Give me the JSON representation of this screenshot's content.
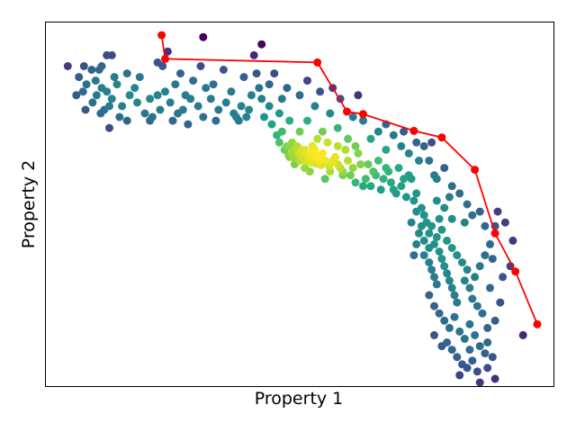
{
  "chart_data": {
    "type": "scatter",
    "title": "",
    "xlabel": "Property 1",
    "ylabel": "Property 2",
    "xlim": [
      0,
      100
    ],
    "ylim": [
      0,
      100
    ],
    "grid": false,
    "legend": "none",
    "ticks_shown": false,
    "colormap": "viridis",
    "colors": {
      "front_line": "#ff0000",
      "front_marker": "#ff0000",
      "frame": "#000000"
    },
    "series": [
      {
        "kind": "points",
        "color_by": "local density",
        "points": [
          [
            4.3,
            88
          ],
          [
            6.0,
            80
          ],
          [
            6.5,
            85
          ],
          [
            7.3,
            81
          ],
          [
            8.0,
            83
          ],
          [
            7.8,
            76
          ],
          [
            9.2,
            78
          ],
          [
            10.0,
            80
          ],
          [
            10.8,
            75
          ],
          [
            12.0,
            81
          ],
          [
            12.5,
            77
          ],
          [
            13.0,
            79
          ],
          [
            11.0,
            82
          ],
          [
            9.8,
            84
          ],
          [
            10.5,
            87
          ],
          [
            12.0,
            91
          ],
          [
            11.5,
            76
          ],
          [
            14.0,
            83
          ],
          [
            15.0,
            77
          ],
          [
            16.5,
            80
          ],
          [
            17.5,
            82
          ],
          [
            14.5,
            74
          ],
          [
            16.0,
            73
          ],
          [
            18.0,
            78
          ],
          [
            19.5,
            75
          ],
          [
            20.5,
            79
          ],
          [
            21.0,
            74
          ],
          [
            22.5,
            76
          ],
          [
            23.5,
            81
          ],
          [
            24.5,
            78
          ],
          [
            25.5,
            83
          ],
          [
            26.0,
            75
          ],
          [
            27.5,
            80
          ],
          [
            28.0,
            72
          ],
          [
            29.0,
            84
          ],
          [
            30.0,
            77
          ],
          [
            31.0,
            74
          ],
          [
            32.5,
            79
          ],
          [
            33.0,
            83
          ],
          [
            34.0,
            76
          ],
          [
            35.5,
            78
          ],
          [
            36.5,
            81
          ],
          [
            37.5,
            74
          ],
          [
            38.5,
            77
          ],
          [
            39.0,
            85
          ],
          [
            40.5,
            80
          ],
          [
            41.5,
            86
          ],
          [
            42.0,
            82
          ],
          [
            35.0,
            87
          ],
          [
            30.5,
            88
          ],
          [
            23.0,
            88
          ],
          [
            20.5,
            73
          ],
          [
            22.0,
            80
          ],
          [
            18.5,
            85
          ],
          [
            25.0,
            73
          ],
          [
            27.0,
            76
          ],
          [
            33.5,
            73
          ],
          [
            37.0,
            75
          ],
          [
            28.5,
            79
          ],
          [
            31.5,
            82
          ],
          [
            16.0,
            86
          ],
          [
            13.5,
            85
          ],
          [
            12.5,
            71
          ],
          [
            38.0,
            73
          ],
          [
            39.5,
            74
          ],
          [
            40.0,
            76
          ],
          [
            43.0,
            74
          ],
          [
            44.5,
            72
          ],
          [
            45.5,
            69
          ],
          [
            46.0,
            67
          ],
          [
            47.0,
            65
          ],
          [
            48.0,
            63
          ],
          [
            49.0,
            61
          ],
          [
            50.0,
            62
          ],
          [
            51.0,
            60
          ],
          [
            52.0,
            59
          ],
          [
            53.0,
            64
          ],
          [
            54.0,
            62
          ],
          [
            55.0,
            57
          ],
          [
            56.0,
            59
          ],
          [
            57.0,
            63
          ],
          [
            58.0,
            60
          ],
          [
            59.0,
            65
          ],
          [
            60.0,
            58
          ],
          [
            61.0,
            56
          ],
          [
            62.0,
            61
          ],
          [
            63.0,
            57
          ],
          [
            64.0,
            55
          ],
          [
            65.0,
            58
          ],
          [
            66.0,
            54
          ],
          [
            67.0,
            60
          ],
          [
            68.0,
            56
          ],
          [
            69.0,
            53
          ],
          [
            70.0,
            55
          ],
          [
            71.0,
            52
          ],
          [
            72.0,
            57
          ],
          [
            73.0,
            53
          ],
          [
            46.5,
            70
          ],
          [
            48.5,
            67
          ],
          [
            50.5,
            65
          ],
          [
            52.5,
            66
          ],
          [
            54.5,
            64
          ],
          [
            56.5,
            62
          ],
          [
            58.5,
            58
          ],
          [
            60.5,
            60
          ],
          [
            62.5,
            55
          ],
          [
            64.5,
            59
          ],
          [
            66.5,
            57
          ],
          [
            68.5,
            54
          ],
          [
            70.5,
            57
          ],
          [
            72.5,
            51
          ],
          [
            42.5,
            79
          ],
          [
            44.0,
            77
          ],
          [
            46.0,
            75
          ],
          [
            48.0,
            73
          ],
          [
            50.0,
            70
          ],
          [
            51.5,
            73
          ],
          [
            53.5,
            68
          ],
          [
            55.5,
            67
          ],
          [
            57.5,
            66
          ],
          [
            59.5,
            62
          ],
          [
            61.5,
            64
          ],
          [
            63.5,
            61
          ],
          [
            65.5,
            62
          ],
          [
            67.5,
            59
          ],
          [
            69.5,
            60
          ],
          [
            71.5,
            58
          ],
          [
            47.5,
            66
          ],
          [
            48.5,
            64
          ],
          [
            49.5,
            66
          ],
          [
            50.0,
            64
          ],
          [
            50.5,
            63
          ],
          [
            51.0,
            65
          ],
          [
            51.5,
            62
          ],
          [
            52.0,
            64
          ],
          [
            52.5,
            62
          ],
          [
            53.0,
            65
          ],
          [
            53.5,
            63
          ],
          [
            54.0,
            61
          ],
          [
            54.5,
            64
          ],
          [
            55.0,
            62
          ],
          [
            49.0,
            65
          ],
          [
            48.0,
            66
          ],
          [
            51.8,
            63.5
          ],
          [
            52.8,
            63.8
          ],
          [
            53.8,
            62.5
          ],
          [
            50.8,
            64.6
          ],
          [
            49.8,
            64.2
          ],
          [
            51.2,
            61.8
          ],
          [
            52.2,
            61.5
          ],
          [
            53.2,
            61.2
          ],
          [
            54.2,
            60.8
          ],
          [
            48.8,
            62.8
          ],
          [
            47.8,
            63.5
          ],
          [
            55.8,
            60.5
          ],
          [
            56.5,
            61.5
          ],
          [
            57.5,
            61.0
          ],
          [
            58.5,
            59.0
          ],
          [
            74.0,
            49
          ],
          [
            74.5,
            47
          ],
          [
            75.0,
            45
          ],
          [
            74.0,
            44
          ],
          [
            75.5,
            42
          ],
          [
            74.5,
            40
          ],
          [
            75.5,
            38
          ],
          [
            74.5,
            36
          ],
          [
            75.5,
            34
          ],
          [
            76.0,
            32
          ],
          [
            76.5,
            30
          ],
          [
            77.0,
            28
          ],
          [
            76.5,
            39
          ],
          [
            77.0,
            41
          ],
          [
            77.5,
            37
          ],
          [
            78.0,
            35
          ],
          [
            78.5,
            33
          ],
          [
            79.0,
            31
          ],
          [
            79.5,
            29
          ],
          [
            80.0,
            27
          ],
          [
            80.5,
            25
          ],
          [
            81.0,
            23
          ],
          [
            76.0,
            44
          ],
          [
            77.5,
            46
          ],
          [
            78.0,
            43
          ],
          [
            79.0,
            40
          ],
          [
            80.0,
            38
          ],
          [
            81.0,
            36
          ],
          [
            82.0,
            34
          ],
          [
            83.0,
            32
          ],
          [
            82.5,
            29
          ],
          [
            83.5,
            27
          ],
          [
            84.0,
            24
          ],
          [
            85.0,
            22
          ],
          [
            86.0,
            20
          ],
          [
            84.5,
            30
          ],
          [
            85.5,
            33
          ],
          [
            86.5,
            36
          ],
          [
            87.5,
            39
          ],
          [
            73.5,
            42
          ],
          [
            73.0,
            39
          ],
          [
            72.5,
            36
          ],
          [
            72.0,
            45
          ],
          [
            73.0,
            48
          ],
          [
            75.5,
            25
          ],
          [
            76.5,
            22
          ],
          [
            77.5,
            20
          ],
          [
            78.5,
            18
          ],
          [
            79.5,
            16
          ],
          [
            80.5,
            19
          ],
          [
            81.5,
            15
          ],
          [
            82.5,
            13
          ],
          [
            83.5,
            17
          ],
          [
            84.5,
            14
          ],
          [
            85.5,
            11
          ],
          [
            86.5,
            9
          ],
          [
            87.0,
            12
          ],
          [
            88.0,
            8
          ],
          [
            79.0,
            12
          ],
          [
            80.0,
            10
          ],
          [
            81.0,
            8
          ],
          [
            82.0,
            6
          ],
          [
            83.0,
            5
          ],
          [
            84.0,
            7
          ],
          [
            85.0,
            4
          ],
          [
            76.5,
            14
          ],
          [
            78.0,
            11
          ],
          [
            81.5,
            3
          ],
          [
            83.5,
            10
          ],
          [
            87.0,
            16
          ],
          [
            88.5,
            18
          ],
          [
            89.5,
            23
          ],
          [
            90.0,
            30
          ],
          [
            91.5,
            33
          ],
          [
            92.0,
            40
          ],
          [
            88.5,
            44
          ],
          [
            87.5,
            27
          ],
          [
            88.0,
            35
          ],
          [
            86.5,
            44
          ],
          [
            84.0,
            47
          ],
          [
            82.5,
            45
          ],
          [
            80.0,
            46
          ],
          [
            78.5,
            49
          ],
          [
            77.0,
            51
          ],
          [
            79.5,
            52
          ],
          [
            83.0,
            50
          ],
          [
            85.5,
            48
          ],
          [
            89.0,
            48
          ],
          [
            90.5,
            45
          ],
          [
            94.0,
            14
          ],
          [
            87.0,
            5
          ],
          [
            85.5,
            1
          ],
          [
            88.5,
            2
          ],
          [
            41.0,
            91
          ],
          [
            42.5,
            94
          ],
          [
            45.0,
            86
          ],
          [
            47.5,
            82
          ],
          [
            50.0,
            80
          ],
          [
            51.5,
            84
          ],
          [
            53.0,
            77
          ],
          [
            54.5,
            70
          ],
          [
            56.0,
            75
          ],
          [
            57.5,
            71
          ],
          [
            59.5,
            68
          ],
          [
            61.0,
            66
          ],
          [
            62.5,
            73
          ],
          [
            64.0,
            68
          ],
          [
            65.5,
            70
          ],
          [
            67.0,
            65
          ],
          [
            68.5,
            69
          ],
          [
            70.0,
            66
          ],
          [
            71.5,
            64
          ],
          [
            73.0,
            67
          ],
          [
            74.5,
            66
          ],
          [
            76.0,
            67
          ],
          [
            75.5,
            62
          ],
          [
            77.0,
            57
          ],
          [
            78.5,
            60
          ],
          [
            80.0,
            55
          ],
          [
            81.5,
            53
          ],
          [
            76.5,
            58
          ],
          [
            73.5,
            62
          ],
          [
            70.5,
            70
          ],
          [
            67.0,
            72
          ],
          [
            61.5,
            80
          ],
          [
            60.5,
            74
          ],
          [
            58.0,
            79
          ],
          [
            56.5,
            82
          ],
          [
            54.0,
            81
          ],
          [
            44.0,
            83
          ],
          [
            46.5,
            79
          ],
          [
            13.0,
            91
          ],
          [
            11.0,
            88
          ],
          [
            31.0,
            96
          ],
          [
            26.5,
            86
          ],
          [
            24.0,
            92
          ],
          [
            22.0,
            89
          ],
          [
            9.0,
            87
          ],
          [
            7.5,
            88
          ]
        ]
      },
      {
        "kind": "line",
        "name": "",
        "points": [
          [
            22.8,
            96.5
          ],
          [
            23.5,
            90.0
          ],
          [
            53.5,
            89.0
          ],
          [
            59.3,
            75.5
          ],
          [
            62.5,
            74.8
          ],
          [
            72.5,
            70.2
          ],
          [
            78.0,
            68.4
          ],
          [
            84.5,
            59.5
          ],
          [
            88.5,
            42.0
          ],
          [
            92.5,
            31.5
          ],
          [
            96.8,
            17.0
          ]
        ]
      }
    ]
  }
}
